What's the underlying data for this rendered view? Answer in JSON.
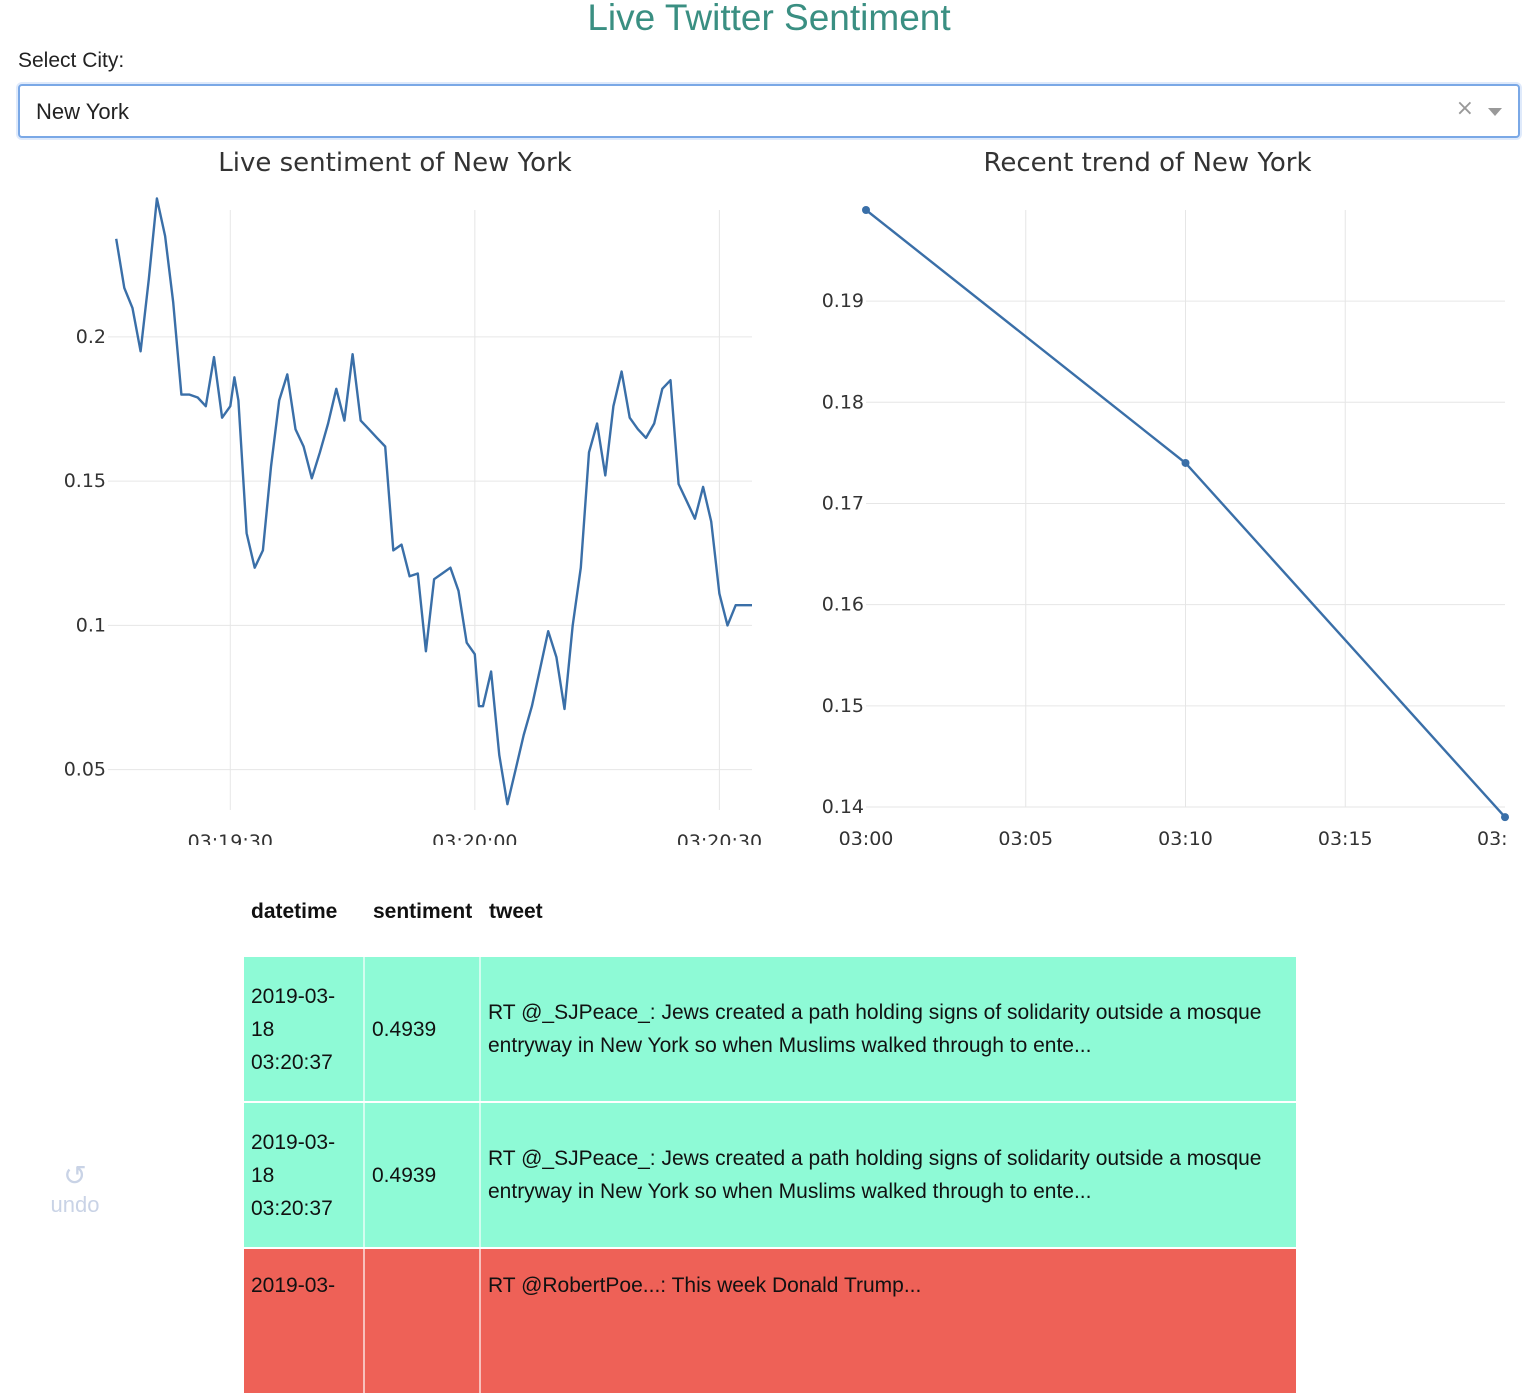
{
  "app": {
    "title": "Live Twitter Sentiment"
  },
  "city_selector": {
    "label": "Select City:",
    "value": "New York",
    "clear_glyph": "×"
  },
  "undo": {
    "glyph": "↺",
    "label": "undo",
    "icon": "undo-icon"
  },
  "table": {
    "headers": [
      "datetime",
      "sentiment",
      "tweet"
    ],
    "rows": [
      {
        "datetime": "2019-03-\n18\n03:20:37",
        "sentiment": "0.4939",
        "tweet": "RT @_SJPeace_: Jews created a path holding signs of solidarity outside a mosque entryway in New York so when Muslims walked through to ente...",
        "color": "#8efad6"
      },
      {
        "datetime": "2019-03-\n18\n03:20:37",
        "sentiment": "0.4939",
        "tweet": "RT @_SJPeace_: Jews created a path holding signs of solidarity outside a mosque entryway in New York so when Muslims walked through to ente...",
        "color": "#8efad6"
      },
      {
        "datetime": "2019-03-",
        "sentiment": "",
        "tweet": "RT @RobertPoe...: This week Donald Trump...",
        "color": "#ee6157"
      }
    ]
  },
  "chart_data": [
    {
      "type": "line",
      "title": "Live sentiment of New York",
      "xlabel": "",
      "ylabel": "",
      "x_ticks": [
        "03:19:30",
        "03:20:00",
        "03:20:30"
      ],
      "y_ticks": [
        "0.05",
        "0.1",
        "0.15",
        "0.2"
      ],
      "xlim_seconds": [
        1155,
        1234
      ],
      "ylim": [
        0.036,
        0.244
      ],
      "grid": true,
      "line_color": "#3a6fa8",
      "series": [
        {
          "x": [
            1156,
            1157,
            1158,
            1159,
            1160,
            1161,
            1162,
            1163,
            1164,
            1165,
            1166,
            1167,
            1168,
            1169,
            1170,
            1170.5,
            1171,
            1172,
            1173,
            1174,
            1175,
            1176,
            1177,
            1178,
            1179,
            1180,
            1181,
            1182,
            1183,
            1184,
            1185,
            1186,
            1187,
            1188,
            1189,
            1190,
            1191,
            1192,
            1193,
            1194,
            1195,
            1196,
            1197,
            1198,
            1199,
            1200,
            1200.5,
            1201,
            1202,
            1203,
            1204,
            1205,
            1206,
            1207,
            1208,
            1209,
            1210,
            1211,
            1212,
            1213,
            1214,
            1215,
            1216,
            1217,
            1218,
            1219,
            1220,
            1221,
            1222,
            1223,
            1224,
            1225,
            1226,
            1227,
            1228,
            1229,
            1230,
            1231,
            1232,
            1233,
            1234
          ],
          "values": [
            0.234,
            0.217,
            0.21,
            0.195,
            0.22,
            0.248,
            0.235,
            0.212,
            0.18,
            0.18,
            0.179,
            0.176,
            0.193,
            0.172,
            0.176,
            0.186,
            0.178,
            0.132,
            0.12,
            0.126,
            0.155,
            0.178,
            0.187,
            0.168,
            0.162,
            0.151,
            0.16,
            0.17,
            0.182,
            0.171,
            0.194,
            0.171,
            0.168,
            0.165,
            0.162,
            0.126,
            0.128,
            0.117,
            0.118,
            0.091,
            0.116,
            0.118,
            0.12,
            0.112,
            0.094,
            0.09,
            0.072,
            0.072,
            0.084,
            0.055,
            0.038,
            0.05,
            0.062,
            0.072,
            0.085,
            0.098,
            0.089,
            0.071,
            0.1,
            0.12,
            0.16,
            0.17,
            0.152,
            0.176,
            0.188,
            0.172,
            0.168,
            0.165,
            0.17,
            0.182,
            0.185,
            0.149,
            0.143,
            0.137,
            0.148,
            0.136,
            0.111,
            0.1,
            0.107,
            0.107,
            0.107
          ]
        }
      ]
    },
    {
      "type": "line",
      "title": "Recent trend of New York",
      "xlabel": "",
      "ylabel": "",
      "x_ticks": [
        "03:00",
        "03:05",
        "03:10",
        "03:15",
        "03:"
      ],
      "y_ticks": [
        "0.14",
        "0.15",
        "0.16",
        "0.17",
        "0.18",
        "0.19"
      ],
      "xlim_minutes": [
        180,
        200
      ],
      "ylim": [
        0.14,
        0.199
      ],
      "grid": true,
      "line_color": "#3a6fa8",
      "series": [
        {
          "x": [
            180,
            190,
            200
          ],
          "values": [
            0.199,
            0.174,
            0.139
          ]
        }
      ]
    }
  ]
}
